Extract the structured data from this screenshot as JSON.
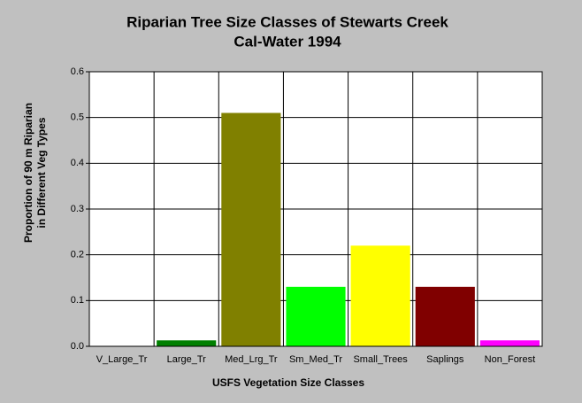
{
  "chart_data": {
    "type": "bar",
    "title": [
      "Riparian Tree Size Classes of Stewarts Creek",
      "Cal-Water 1994"
    ],
    "x_label": "USFS Vegetation Size Classes",
    "y_label": [
      "Proportion of 90 m Riparian",
      "in Different Veg Types"
    ],
    "categories": [
      "V_Large_Tr",
      "Large_Tr",
      "Med_Lrg_Tr",
      "Sm_Med_Tr",
      "Small_Trees",
      "Saplings",
      "Non_Forest"
    ],
    "values": [
      0,
      0.013,
      0.51,
      0.13,
      0.22,
      0.13,
      0.013
    ],
    "colors": [
      "#004000",
      "#008000",
      "#808000",
      "#00ff00",
      "#ffff00",
      "#800000",
      "#ff00ff"
    ],
    "ylim": [
      0,
      0.6
    ],
    "yticks": [
      {
        "value": 0,
        "label": "0.0"
      },
      0.1,
      0.2,
      0.3,
      0.4,
      0.5,
      0.6
    ],
    "grid": true
  }
}
